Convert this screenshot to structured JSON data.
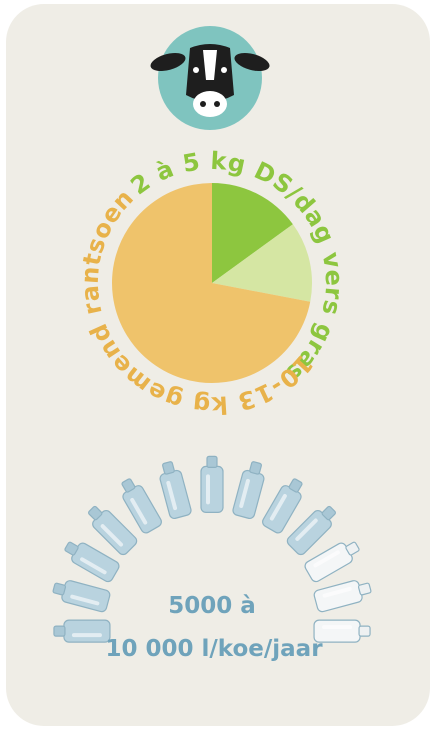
{
  "pie": {
    "slices": [
      {
        "value": 15,
        "color": "#8dc63f"
      },
      {
        "value": 13,
        "color": "#d5e6a3"
      },
      {
        "value": 72,
        "color": "#efc36b"
      }
    ],
    "labels": [
      {
        "text": "2 à 5 kg DS/dag vers gras",
        "color": "#8dc63f"
      },
      {
        "text": "10-13 kg gemend rantsoen",
        "color": "#e8b24a"
      }
    ]
  },
  "water": {
    "lines": [
      "5000 à",
      "10 000 l/koe/jaar"
    ],
    "color": "#6fa3bb"
  }
}
